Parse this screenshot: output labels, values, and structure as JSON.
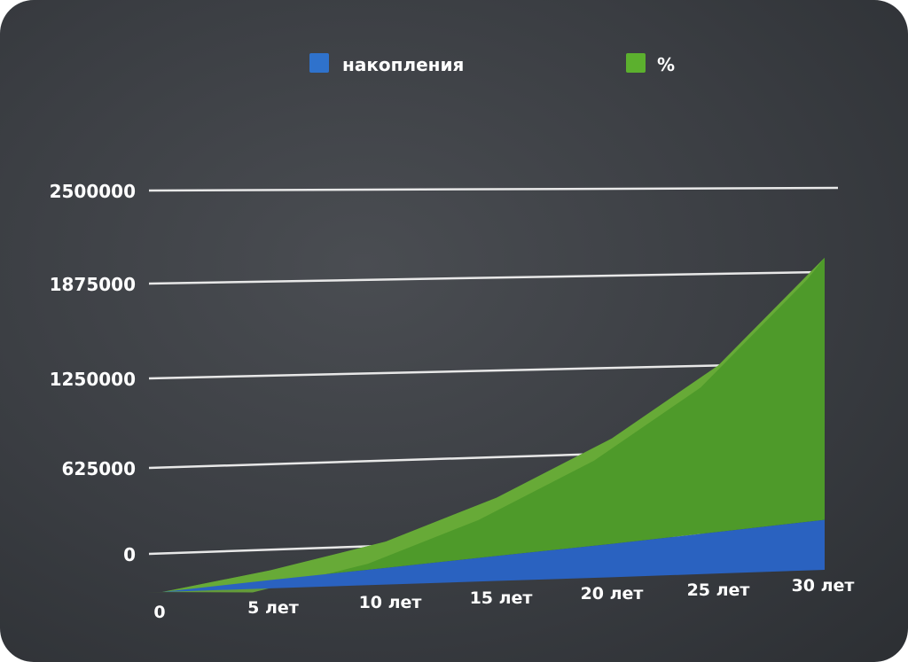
{
  "chart_data": {
    "type": "area",
    "stacked": true,
    "title": "",
    "xlabel": "",
    "ylabel": "",
    "categories": [
      "0",
      "5 лет",
      "10 лет",
      "15 лет",
      "20 лет",
      "25 лет",
      "30 лет"
    ],
    "y_ticks": [
      "0",
      "625000",
      "1250000",
      "1875000",
      "2500000"
    ],
    "ylim": [
      0,
      2500000
    ],
    "grid": true,
    "legend_position": "top",
    "series": [
      {
        "name": "накопления",
        "color": "#2a62c0",
        "values": [
          0,
          60000,
          120000,
          180000,
          240000,
          300000,
          360000
        ]
      },
      {
        "name": "%",
        "color": "#4e9a2a",
        "values": [
          0,
          70000,
          190000,
          420000,
          760000,
          1200000,
          1890000
        ]
      }
    ]
  }
}
